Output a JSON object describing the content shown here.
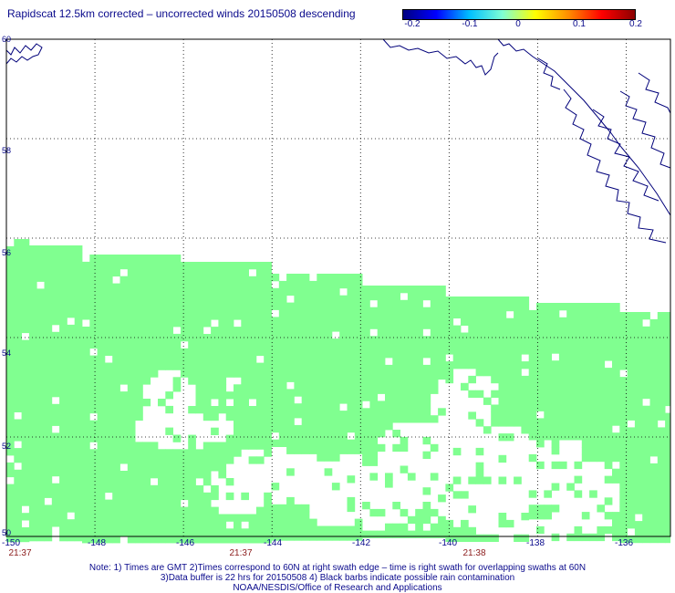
{
  "title": "Rapidscat 12.5km corrected – uncorrected winds 20150508 descending",
  "colorbar": {
    "colors": [
      "#000080",
      "#0000ff",
      "#00bfff",
      "#7fffd4",
      "#ffff00",
      "#ff8c00",
      "#ff0000",
      "#8b0000"
    ],
    "labels": [
      "-0.2",
      "-0.1",
      "0",
      "0.1",
      "0.2"
    ]
  },
  "map": {
    "lon_range": [
      -150,
      -135
    ],
    "lat_range": [
      50,
      60
    ],
    "lat_labels": [
      "60",
      "58",
      "56",
      "54",
      "52",
      "50"
    ],
    "lon_labels": [
      "-150",
      "-148",
      "-146",
      "-144",
      "-142",
      "-140",
      "-138",
      "-136"
    ],
    "time_labels": [
      "21:37",
      "21:37",
      "21:38"
    ],
    "swath_color": "#80ff90",
    "coast_color": "#00007a"
  },
  "notes": {
    "line1": "Note:  1) Times are GMT  2)Times correspond to 60N at right swath edge – time is right swath for overlapping swaths at 60N",
    "line2": "3)Data buffer is 22 hrs for 20150508  4) Black barbs indicate possible rain contamination",
    "line3": "NOAA/NESDIS/Office of Research and Applications"
  }
}
